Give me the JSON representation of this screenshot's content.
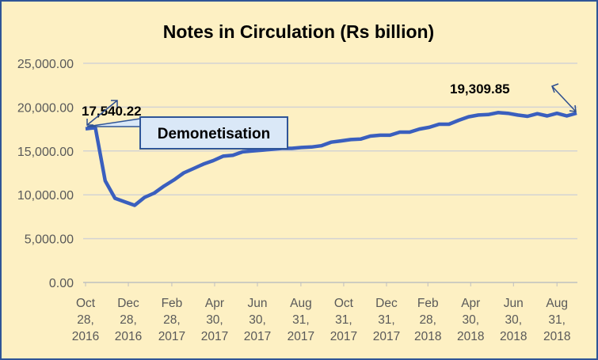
{
  "chart_data": {
    "type": "line",
    "title": "Notes in Circulation (Rs billion)",
    "xlabel": "",
    "ylabel": "",
    "ylim": [
      0,
      25000
    ],
    "y_ticks": [
      "0.00",
      "5,000.00",
      "10,000.00",
      "15,000.00",
      "20,000.00",
      "25,000.00"
    ],
    "x_range": [
      "2016-10-28",
      "2018-09-28"
    ],
    "x_ticks": [
      {
        "date": "2016-10-28",
        "label": [
          "Oct",
          "28,",
          "2016"
        ]
      },
      {
        "date": "2016-12-28",
        "label": [
          "Dec",
          "28,",
          "2016"
        ]
      },
      {
        "date": "2017-02-28",
        "label": [
          "Feb",
          "28,",
          "2017"
        ]
      },
      {
        "date": "2017-04-30",
        "label": [
          "Apr",
          "30,",
          "2017"
        ]
      },
      {
        "date": "2017-06-30",
        "label": [
          "Jun",
          "30,",
          "2017"
        ]
      },
      {
        "date": "2017-08-31",
        "label": [
          "Aug",
          "31,",
          "2017"
        ]
      },
      {
        "date": "2017-10-31",
        "label": [
          "Oct",
          "31,",
          "2017"
        ]
      },
      {
        "date": "2017-12-31",
        "label": [
          "Dec",
          "31,",
          "2017"
        ]
      },
      {
        "date": "2018-02-28",
        "label": [
          "Feb",
          "28,",
          "2018"
        ]
      },
      {
        "date": "2018-04-30",
        "label": [
          "Apr",
          "30,",
          "2018"
        ]
      },
      {
        "date": "2018-06-30",
        "label": [
          "Jun",
          "30,",
          "2018"
        ]
      },
      {
        "date": "2018-08-31",
        "label": [
          "Aug",
          "31,",
          "2018"
        ]
      }
    ],
    "grid": true,
    "legend": "none",
    "line_color": "#3A5FBE",
    "x": [
      "2016-10-28",
      "2016-11-11",
      "2016-11-25",
      "2016-12-09",
      "2016-12-23",
      "2017-01-06",
      "2017-01-20",
      "2017-02-03",
      "2017-02-17",
      "2017-03-03",
      "2017-03-17",
      "2017-03-31",
      "2017-04-14",
      "2017-04-28",
      "2017-05-12",
      "2017-05-26",
      "2017-06-09",
      "2017-06-23",
      "2017-07-07",
      "2017-07-21",
      "2017-08-04",
      "2017-08-18",
      "2017-09-01",
      "2017-09-15",
      "2017-09-29",
      "2017-10-13",
      "2017-10-27",
      "2017-11-10",
      "2017-11-24",
      "2017-12-08",
      "2017-12-22",
      "2018-01-05",
      "2018-01-19",
      "2018-02-02",
      "2018-02-16",
      "2018-03-02",
      "2018-03-16",
      "2018-03-30",
      "2018-04-13",
      "2018-04-27",
      "2018-05-11",
      "2018-05-25",
      "2018-06-08",
      "2018-06-22",
      "2018-07-06",
      "2018-07-20",
      "2018-08-03",
      "2018-08-17",
      "2018-08-31",
      "2018-09-14",
      "2018-09-28"
    ],
    "values": [
      17540.22,
      17650,
      11600,
      9600,
      9200,
      8800,
      9700,
      10200,
      11000,
      11700,
      12500,
      13000,
      13500,
      13900,
      14400,
      14500,
      14900,
      15000,
      15100,
      15200,
      15300,
      15300,
      15400,
      15450,
      15600,
      16000,
      16150,
      16300,
      16350,
      16700,
      16800,
      16800,
      17150,
      17150,
      17500,
      17700,
      18050,
      18050,
      18500,
      18900,
      19100,
      19150,
      19380,
      19300,
      19100,
      18950,
      19250,
      19000,
      19300,
      19000,
      19309.85
    ],
    "annotations": {
      "start_value": "17,540.22",
      "end_value": "19,309.85",
      "callout": "Demonetisation"
    }
  }
}
